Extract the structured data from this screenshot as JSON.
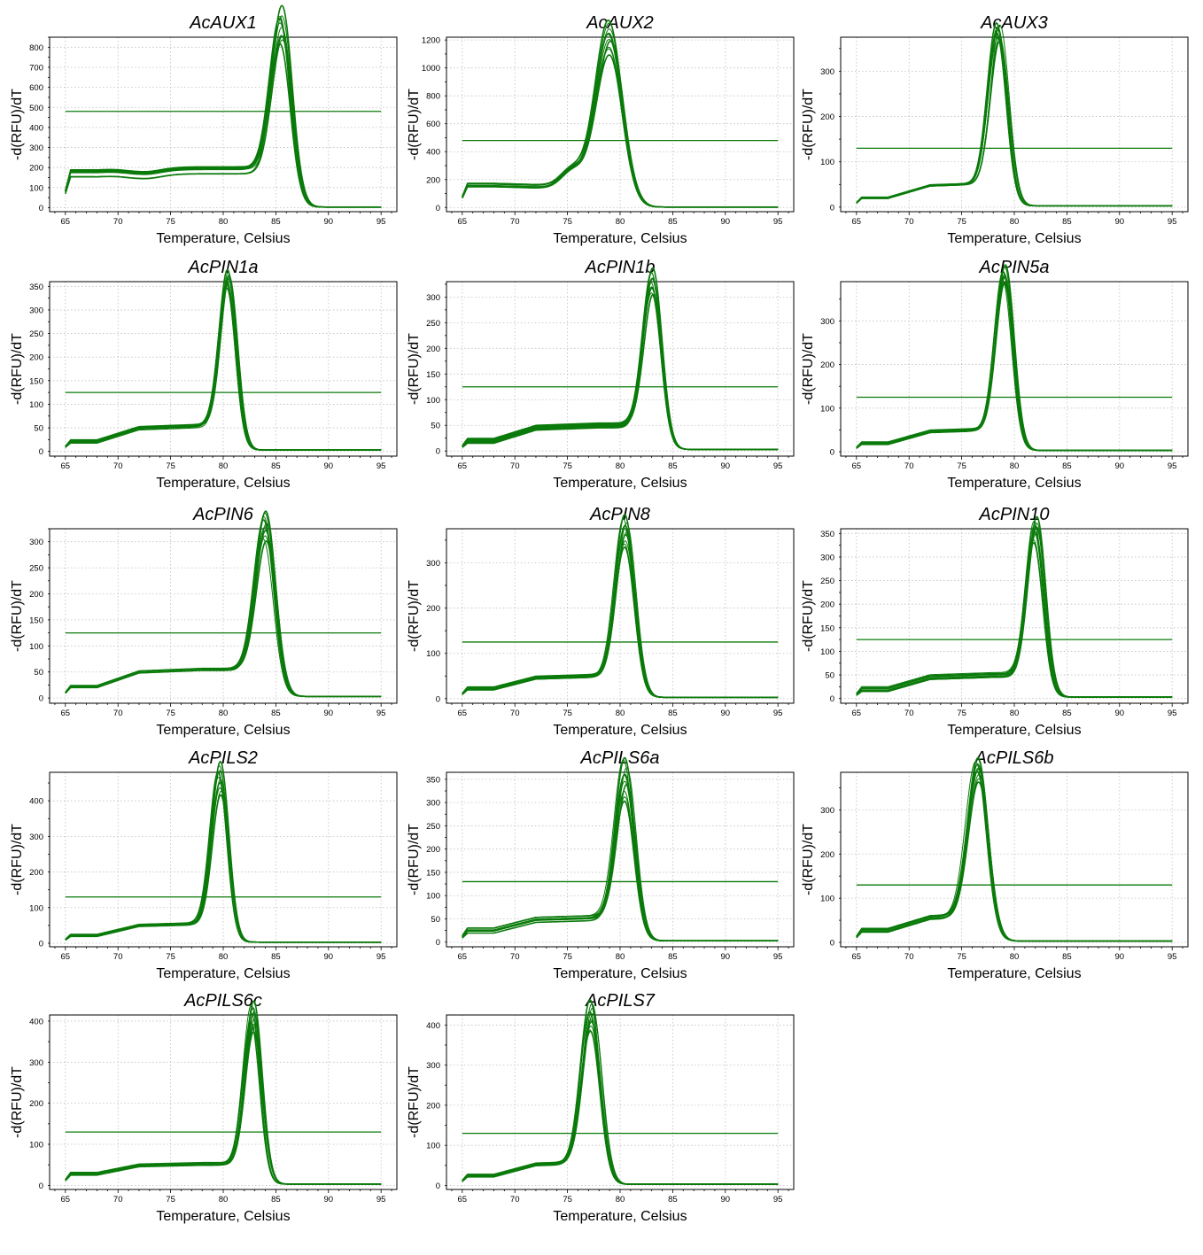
{
  "style": {
    "curve_color": "#0a7a0a",
    "threshold_color": "#0a7a0a",
    "grid_color": "#bfbfbf",
    "frame_color": "#000000"
  },
  "chart_data": [
    {
      "type": "line",
      "title": "AcAUX1",
      "xlabel": "Temperature, Celsius",
      "ylabel": "-d(RFU)/dT",
      "xlim": [
        63.5,
        96.5
      ],
      "ylim": [
        -20,
        850
      ],
      "xticks": [
        65,
        70,
        75,
        80,
        85,
        90,
        95
      ],
      "yticks": [
        0,
        100,
        200,
        300,
        400,
        500,
        600,
        700,
        800
      ],
      "threshold": 480,
      "peak_temp": 85.5,
      "peak_min": 640,
      "peak_max": 820,
      "peak_width": 1.4,
      "base_start": 170,
      "base_end": 185,
      "base_spread": 25,
      "dip": 1,
      "shoulder": 0,
      "curve_count": 10
    },
    {
      "type": "line",
      "title": "AcAUX2",
      "xlabel": "Temperature, Celsius",
      "ylabel": "-d(RFU)/dT",
      "xlim": [
        63.5,
        96.5
      ],
      "ylim": [
        -30,
        1220
      ],
      "xticks": [
        65,
        70,
        75,
        80,
        85,
        90,
        95
      ],
      "yticks": [
        0,
        200,
        400,
        600,
        800,
        1000,
        1200
      ],
      "threshold": 480,
      "peak_temp": 79,
      "peak_min": 960,
      "peak_max": 1190,
      "peak_width": 1.8,
      "base_start": 160,
      "base_end": 150,
      "base_spread": 15,
      "dip": 0,
      "shoulder": 1,
      "curve_count": 10
    },
    {
      "type": "line",
      "title": "AcAUX3",
      "xlabel": "Temperature, Celsius",
      "ylabel": "-d(RFU)/dT",
      "xlim": [
        63.5,
        96.5
      ],
      "ylim": [
        -10,
        375
      ],
      "xticks": [
        65,
        70,
        75,
        80,
        85,
        90,
        95
      ],
      "yticks": [
        0,
        100,
        200,
        300
      ],
      "threshold": 130,
      "peak_temp": 78.5,
      "peak_min": 320,
      "peak_max": 360,
      "peak_width": 1.25,
      "base_start": 20,
      "base_end": 52,
      "base_spread": 4,
      "dip": 0,
      "shoulder": 0,
      "curve_count": 10
    },
    {
      "type": "line",
      "title": "AcPIN1a",
      "xlabel": "Temperature, Celsius",
      "ylabel": "-d(RFU)/dT",
      "xlim": [
        63.5,
        96.5
      ],
      "ylim": [
        -10,
        360
      ],
      "xticks": [
        65,
        70,
        75,
        80,
        85,
        90,
        95
      ],
      "yticks": [
        0,
        50,
        100,
        150,
        200,
        250,
        300,
        350
      ],
      "threshold": 125,
      "peak_temp": 80.5,
      "peak_min": 300,
      "peak_max": 335,
      "peak_width": 1.15,
      "base_start": 22,
      "base_end": 55,
      "base_spread": 5,
      "dip": 0,
      "shoulder": 0,
      "curve_count": 10
    },
    {
      "type": "line",
      "title": "AcPIN1b",
      "xlabel": "Temperature, Celsius",
      "ylabel": "-d(RFU)/dT",
      "xlim": [
        63.5,
        96.5
      ],
      "ylim": [
        -10,
        330
      ],
      "xticks": [
        65,
        70,
        75,
        80,
        85,
        90,
        95
      ],
      "yticks": [
        0,
        50,
        100,
        150,
        200,
        250,
        300
      ],
      "threshold": 125,
      "peak_temp": 83,
      "peak_min": 260,
      "peak_max": 310,
      "peak_width": 1.25,
      "base_start": 20,
      "base_end": 50,
      "base_spread": 5,
      "dip": 0,
      "shoulder": 0,
      "curve_count": 10
    },
    {
      "type": "line",
      "title": "AcPIN5a",
      "xlabel": "Temperature, Celsius",
      "ylabel": "-d(RFU)/dT",
      "xlim": [
        63.5,
        96.5
      ],
      "ylim": [
        -10,
        390
      ],
      "xticks": [
        65,
        70,
        75,
        80,
        85,
        90,
        95
      ],
      "yticks": [
        0,
        100,
        200,
        300
      ],
      "threshold": 125,
      "peak_temp": 79,
      "peak_min": 340,
      "peak_max": 380,
      "peak_width": 1.2,
      "base_start": 20,
      "base_end": 52,
      "base_spread": 4,
      "dip": 0,
      "shoulder": 0,
      "curve_count": 10
    },
    {
      "type": "line",
      "title": "AcPIN6",
      "xlabel": "Temperature, Celsius",
      "ylabel": "-d(RFU)/dT",
      "xlim": [
        63.5,
        96.5
      ],
      "ylim": [
        -10,
        325
      ],
      "xticks": [
        65,
        70,
        75,
        80,
        85,
        90,
        95
      ],
      "yticks": [
        0,
        50,
        100,
        150,
        200,
        250,
        300
      ],
      "threshold": 125,
      "peak_temp": 84,
      "peak_min": 250,
      "peak_max": 310,
      "peak_width": 1.35,
      "base_start": 22,
      "base_end": 55,
      "base_spread": 5,
      "dip": 0,
      "shoulder": 0,
      "curve_count": 10
    },
    {
      "type": "line",
      "title": "AcPIN8",
      "xlabel": "Temperature, Celsius",
      "ylabel": "-d(RFU)/dT",
      "xlim": [
        63.5,
        96.5
      ],
      "ylim": [
        -10,
        375
      ],
      "xticks": [
        65,
        70,
        75,
        80,
        85,
        90,
        95
      ],
      "yticks": [
        0,
        100,
        200,
        300
      ],
      "threshold": 125,
      "peak_temp": 80.5,
      "peak_min": 290,
      "peak_max": 360,
      "peak_width": 1.3,
      "base_start": 22,
      "base_end": 50,
      "base_spread": 4,
      "dip": 0,
      "shoulder": 0,
      "curve_count": 10
    },
    {
      "type": "line",
      "title": "AcPIN10",
      "xlabel": "Temperature, Celsius",
      "ylabel": "-d(RFU)/dT",
      "xlim": [
        63.5,
        96.5
      ],
      "ylim": [
        -10,
        360
      ],
      "xticks": [
        65,
        70,
        75,
        80,
        85,
        90,
        95
      ],
      "yticks": [
        0,
        50,
        100,
        150,
        200,
        250,
        300,
        350
      ],
      "threshold": 125,
      "peak_temp": 82,
      "peak_min": 290,
      "peak_max": 340,
      "peak_width": 1.2,
      "base_start": 20,
      "base_end": 50,
      "base_spread": 6,
      "dip": 0,
      "shoulder": 0,
      "curve_count": 10
    },
    {
      "type": "line",
      "title": "AcPILS2",
      "xlabel": "Temperature, Celsius",
      "ylabel": "-d(RFU)/dT",
      "xlim": [
        63.5,
        96.5
      ],
      "ylim": [
        -10,
        480
      ],
      "xticks": [
        65,
        70,
        75,
        80,
        85,
        90,
        95
      ],
      "yticks": [
        0,
        100,
        200,
        300,
        400
      ],
      "threshold": 130,
      "peak_temp": 79.7,
      "peak_min": 370,
      "peak_max": 460,
      "peak_width": 1.15,
      "base_start": 22,
      "base_end": 55,
      "base_spread": 5,
      "dip": 0,
      "shoulder": 0,
      "curve_count": 10
    },
    {
      "type": "line",
      "title": "AcPILS6a",
      "xlabel": "Temperature, Celsius",
      "ylabel": "-d(RFU)/dT",
      "xlim": [
        63.5,
        96.5
      ],
      "ylim": [
        -10,
        365
      ],
      "xticks": [
        65,
        70,
        75,
        80,
        85,
        90,
        95
      ],
      "yticks": [
        0,
        50,
        100,
        150,
        200,
        250,
        300,
        350
      ],
      "threshold": 130,
      "peak_temp": 80.5,
      "peak_min": 255,
      "peak_max": 350,
      "peak_width": 1.3,
      "base_start": 25,
      "base_end": 52,
      "base_spread": 6,
      "dip": 0,
      "shoulder": 0,
      "curve_count": 10
    },
    {
      "type": "line",
      "title": "AcPILS6b",
      "xlabel": "Temperature, Celsius",
      "ylabel": "-d(RFU)/dT",
      "xlim": [
        63.5,
        96.5
      ],
      "ylim": [
        -10,
        385
      ],
      "xticks": [
        65,
        70,
        75,
        80,
        85,
        90,
        95
      ],
      "yticks": [
        0,
        100,
        200,
        300
      ],
      "threshold": 130,
      "peak_temp": 76.5,
      "peak_min": 310,
      "peak_max": 365,
      "peak_width": 1.4,
      "base_start": 28,
      "base_end": 62,
      "base_spread": 5,
      "dip": 0,
      "shoulder": 0,
      "curve_count": 10
    },
    {
      "type": "line",
      "title": "AcPILS6c",
      "xlabel": "Temperature, Celsius",
      "ylabel": "-d(RFU)/dT",
      "xlim": [
        63.5,
        96.5
      ],
      "ylim": [
        -10,
        415
      ],
      "xticks": [
        65,
        70,
        75,
        80,
        85,
        90,
        95
      ],
      "yticks": [
        0,
        100,
        200,
        300,
        400
      ],
      "threshold": 130,
      "peak_temp": 82.8,
      "peak_min": 330,
      "peak_max": 400,
      "peak_width": 1.15,
      "base_start": 28,
      "base_end": 52,
      "base_spread": 5,
      "dip": 0,
      "shoulder": 0,
      "curve_count": 10
    },
    {
      "type": "line",
      "title": "AcPILS7",
      "xlabel": "Temperature, Celsius",
      "ylabel": "-d(RFU)/dT",
      "xlim": [
        63.5,
        96.5
      ],
      "ylim": [
        -10,
        425
      ],
      "xticks": [
        65,
        70,
        75,
        80,
        85,
        90,
        95
      ],
      "yticks": [
        0,
        100,
        200,
        300,
        400
      ],
      "threshold": 130,
      "peak_temp": 77.3,
      "peak_min": 330,
      "peak_max": 410,
      "peak_width": 1.3,
      "base_start": 25,
      "base_end": 58,
      "base_spread": 5,
      "dip": 0,
      "shoulder": 0,
      "curve_count": 10
    }
  ]
}
